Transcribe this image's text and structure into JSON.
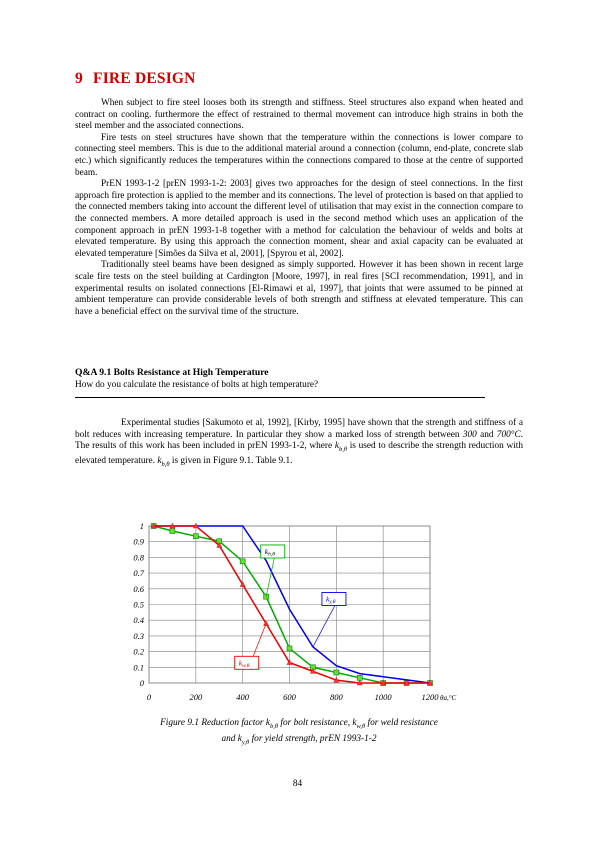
{
  "heading": {
    "number": "9",
    "title": "FIRE DESIGN"
  },
  "intro_paragraphs": [
    "When subject to fire steel looses both its strength and stiffness. Steel structures also expand when heated and contract on cooling. furthermore the effect of restrained to thermal movement can introduce high strains in both the steel member and the associated connections.",
    "Fire tests on steel structures have shown that the temperature within the connections is lower compare to connecting steel members. This is due to the additional material around a connection (column, end-plate, concrete slab etc.) which significantly reduces the temperatures within the connections compared to those at the centre of supported beam.",
    "PrEN 1993-1-2 [prEN 1993-1-2: 2003] gives two approaches for the design of steel connections. In the first approach fire protection is applied to the member and its connections. The level of protection is based on that applied to the connected members taking into account the different level of utilisation that may exist in the connection compare to the connected members. A more detailed approach is used in the second method which uses an application of the component approach in prEN 1993-1-8 together with a method for calculation the behaviour of welds and bolts at elevated temperature. By using this approach the connection moment, shear and axial capacity can be evaluated at elevated temperature [Simões da Silva et al, 2001], [Spyrou et al, 2002].",
    "Traditionally steel beams have been designed as simply supported. However it has been shown in recent large scale fire tests on the steel building at Cardington [Moore, 1997], in real fires [SCI recommendation, 1991], and in experimental results on isolated connections [El-Rimawi et al, 1997], that joints that were assumed to be pinned at ambient temperature can provide considerable levels of both strength and stiffness at elevated temperature. This can have a beneficial effect on the survival time of the structure."
  ],
  "qa": {
    "title": "Q&A 9.1  Bolts Resistance at High Temperature",
    "question": "How do you calculate the resistance of bolts at high temperature?"
  },
  "answer": {
    "p1": "Experimental studies [Sakumoto et al, 1992], [Kirby, 1995] have shown that the strength and stiffness of a bolt reduces with increasing temperature. In particular they show a marked loss of strength between ",
    "t1": "300",
    "and": " and ",
    "t2": "700°C",
    "p2": ". The results of this work has been included in prEN 1993-1-2, where ",
    "k1": "k",
    "k1sub": "b,θ",
    "p3": " is used to describe the strength reduction with elevated temperature. ",
    "k2": "k",
    "k2sub": "b,θ",
    "p4": " is given in Figure 9.1. Table 9.1."
  },
  "chart_data": {
    "type": "line",
    "xlim": [
      0,
      1200
    ],
    "ylim": [
      0,
      1
    ],
    "xticks": [
      "0",
      "200",
      "400",
      "600",
      "800",
      "1000",
      "1200"
    ],
    "yticks": [
      "0",
      "0.1",
      "0.2",
      "0.3",
      "0.4",
      "0.5",
      "0.6",
      "0.7",
      "0.8",
      "0.9",
      "1"
    ],
    "xlabel": "θa,°C",
    "grid": true,
    "series": [
      {
        "name": "kb,θ",
        "color": "#00aa00",
        "marker": "square",
        "x": [
          20,
          100,
          200,
          300,
          400,
          500,
          600,
          700,
          800,
          900,
          1000,
          1100,
          1200
        ],
        "y": [
          1.0,
          0.968,
          0.935,
          0.903,
          0.775,
          0.55,
          0.22,
          0.1,
          0.067,
          0.033,
          0.0,
          0.0,
          0.0
        ]
      },
      {
        "name": "ky,θ",
        "color": "#0000ee",
        "marker": "none",
        "x": [
          20,
          100,
          200,
          300,
          400,
          500,
          600,
          700,
          800,
          900,
          1000,
          1100,
          1200
        ],
        "y": [
          1.0,
          1.0,
          1.0,
          1.0,
          1.0,
          0.78,
          0.47,
          0.23,
          0.11,
          0.06,
          0.04,
          0.02,
          0.0
        ]
      },
      {
        "name": "kw,θ",
        "color": "#ee0000",
        "marker": "triangle",
        "x": [
          20,
          100,
          200,
          300,
          400,
          500,
          600,
          700,
          800,
          900,
          1000,
          1100,
          1200
        ],
        "y": [
          1.0,
          1.0,
          1.0,
          0.876,
          0.627,
          0.378,
          0.13,
          0.074,
          0.018,
          0.0,
          0.0,
          0.0,
          0.0
        ]
      }
    ],
    "annotations": [
      {
        "label": "k",
        "sub": "b,θ",
        "series": 0,
        "x": 520,
        "y": 0.79
      },
      {
        "label": "k",
        "sub": "y,θ",
        "series": 1,
        "x": 730,
        "y": 0.5
      },
      {
        "label": "k",
        "sub": "w,θ",
        "series": 2,
        "x": 460,
        "y": 0.17
      }
    ]
  },
  "caption": {
    "line1_a": "Figure 9.1 Reduction factor k",
    "line1_sub1": "b,θ",
    "line1_b": " for bolt resistance, k",
    "line1_sub2": "w,θ",
    "line1_c": " for weld resistance",
    "line2_a": "and k",
    "line2_sub": "y,θ",
    "line2_b": " for yield strength, prEN 1993-1-2"
  },
  "page_number": "84"
}
